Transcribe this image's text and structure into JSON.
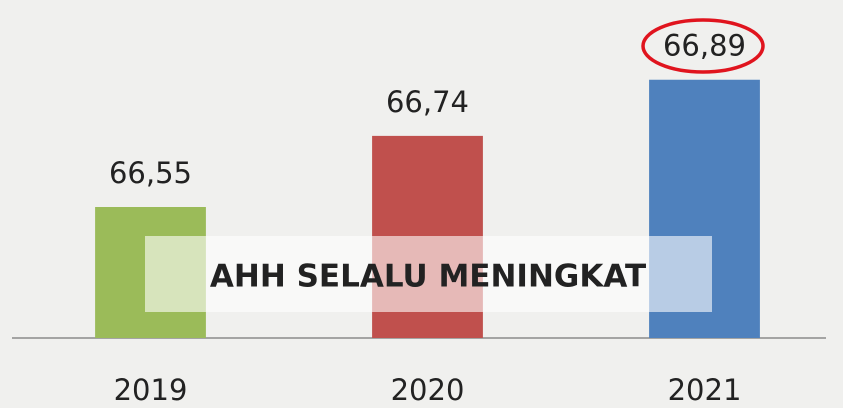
{
  "chart_data": {
    "type": "bar",
    "categories": [
      "2019",
      "2020",
      "2021"
    ],
    "values": [
      66.55,
      66.74,
      66.89
    ],
    "value_labels": [
      "66,55",
      "66,74",
      "66,89"
    ],
    "colors": [
      "#9bbb59",
      "#c0504d",
      "#4f81bd"
    ],
    "ylim": [
      66.2,
      66.9
    ],
    "annotation": "AHH SELALU MENINGKAT"
  }
}
